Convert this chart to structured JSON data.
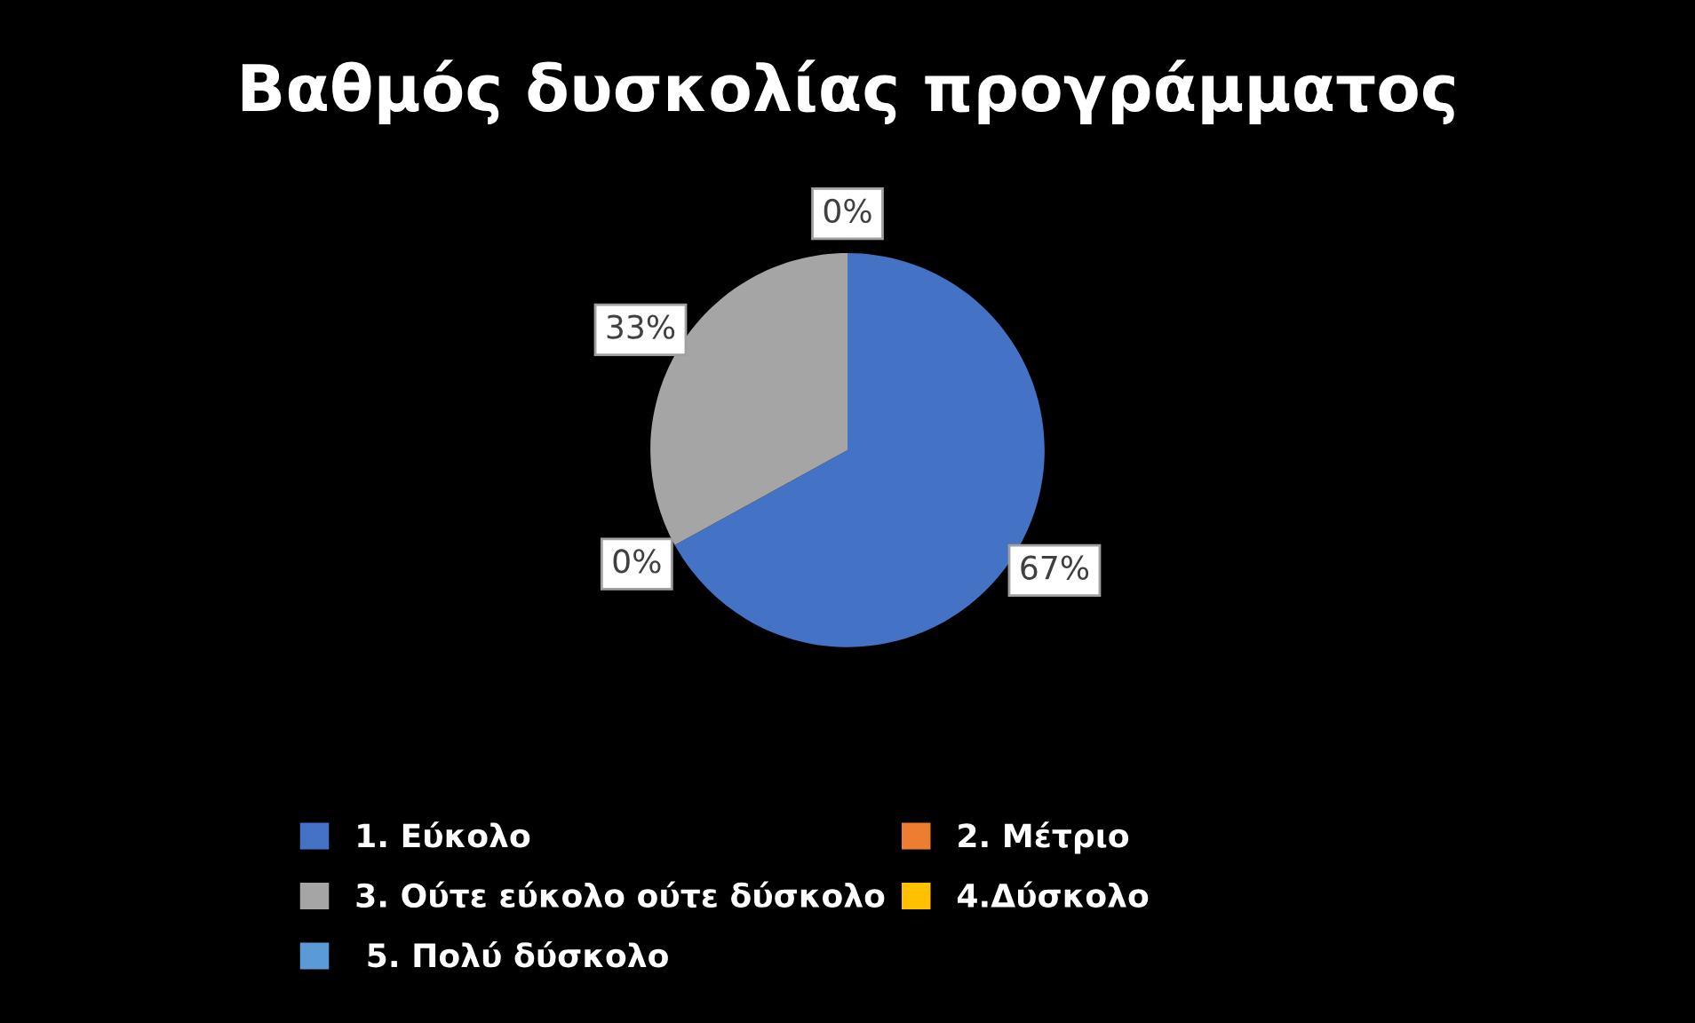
{
  "chart_data": {
    "type": "pie",
    "title": "Βαθμός δυσκολίας προγράμματος",
    "categories": [
      "1. Εύκολο",
      "2. Μέτριο",
      "3. Ούτε εύκολο ούτε δύσκολο",
      "4.Δύσκολο",
      " 5. Πολύ δύσκολο"
    ],
    "values": [
      67,
      0,
      33,
      0,
      0
    ],
    "value_labels": [
      "67%",
      "0%",
      "33%",
      "0%",
      null
    ],
    "colors": [
      "#4472c4",
      "#ed7d31",
      "#a5a5a5",
      "#ffc000",
      "#5b9bd5"
    ],
    "legend": "bottom"
  }
}
